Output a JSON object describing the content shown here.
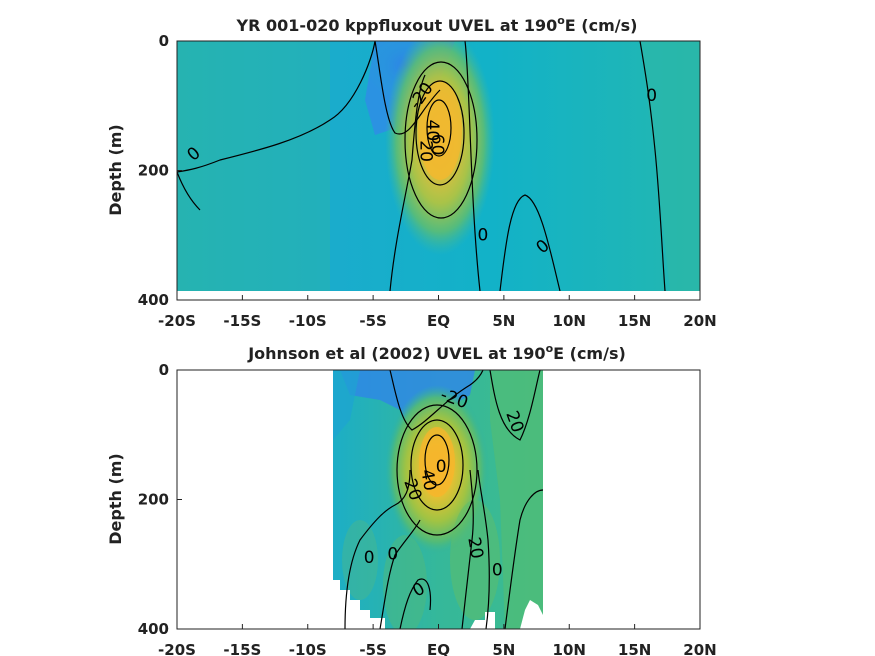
{
  "chart_data": [
    {
      "type": "heatmap",
      "title_main": "YR 001-020 kppfluxout UVEL at 190",
      "title_sup": "o",
      "title_end": "E (cm/s)",
      "ylabel": "Depth (m)",
      "x_ticks": [
        "-20S",
        "-15S",
        "-10S",
        "-5S",
        "EQ",
        "5N",
        "10N",
        "15N",
        "20N"
      ],
      "y_ticks": [
        "0",
        "200",
        "400"
      ],
      "xlim": [
        -20,
        20
      ],
      "ylim": [
        0,
        400
      ],
      "data_extent": {
        "lat": [
          -20,
          20
        ],
        "depth": [
          0,
          385
        ]
      },
      "jet_core": {
        "lat": 0.3,
        "depth": 120,
        "max_cm_s": 100
      },
      "contour_labels": [
        {
          "text": "0",
          "lat": -18.7,
          "depth": 175,
          "angle": -40
        },
        {
          "text": "-20",
          "lat": -1.3,
          "depth": 85,
          "angle": -55
        },
        {
          "text": "0",
          "lat": 16.3,
          "depth": 85,
          "angle": 0
        },
        {
          "text": "40",
          "lat": -0.5,
          "depth": 138,
          "angle": 90
        },
        {
          "text": "60",
          "lat": -0.1,
          "depth": 160,
          "angle": 90
        },
        {
          "text": "20",
          "lat": -1.0,
          "depth": 170,
          "angle": 90
        },
        {
          "text": "0",
          "lat": 3.4,
          "depth": 300,
          "angle": 0
        },
        {
          "text": "0",
          "lat": 8.0,
          "depth": 318,
          "angle": -40
        }
      ]
    },
    {
      "type": "heatmap",
      "title_main": "Johnson et al (2002) UVEL at 190",
      "title_sup": "o",
      "title_end": "E (cm/s)",
      "ylabel": "Depth (m)",
      "x_ticks": [
        "-20S",
        "-15S",
        "-10S",
        "-5S",
        "EQ",
        "5N",
        "10N",
        "15N",
        "20N"
      ],
      "y_ticks": [
        "0",
        "200",
        "400"
      ],
      "xlim": [
        -20,
        20
      ],
      "ylim": [
        0,
        400
      ],
      "data_extent": {
        "lat": [
          -8,
          8
        ],
        "depth": [
          0,
          400
        ]
      },
      "jet_core": {
        "lat": 0.2,
        "depth": 150,
        "max_cm_s": 100
      },
      "contour_labels": [
        {
          "text": "-20",
          "lat": 1.2,
          "depth": 45,
          "angle": 20
        },
        {
          "text": "20",
          "lat": 5.8,
          "depth": 80,
          "angle": 70
        },
        {
          "text": "0",
          "lat": 0.2,
          "depth": 150,
          "angle": 0
        },
        {
          "text": "40",
          "lat": -0.8,
          "depth": 170,
          "angle": 80
        },
        {
          "text": "20",
          "lat": -2.0,
          "depth": 185,
          "angle": 70
        },
        {
          "text": "0",
          "lat": -5.3,
          "depth": 290,
          "angle": 0
        },
        {
          "text": "0",
          "lat": -3.5,
          "depth": 285,
          "angle": 0
        },
        {
          "text": "20",
          "lat": 2.8,
          "depth": 275,
          "angle": 80
        },
        {
          "text": "0",
          "lat": 4.5,
          "depth": 310,
          "angle": 0
        },
        {
          "text": "0",
          "lat": -1.5,
          "depth": 340,
          "angle": -30
        }
      ]
    }
  ]
}
